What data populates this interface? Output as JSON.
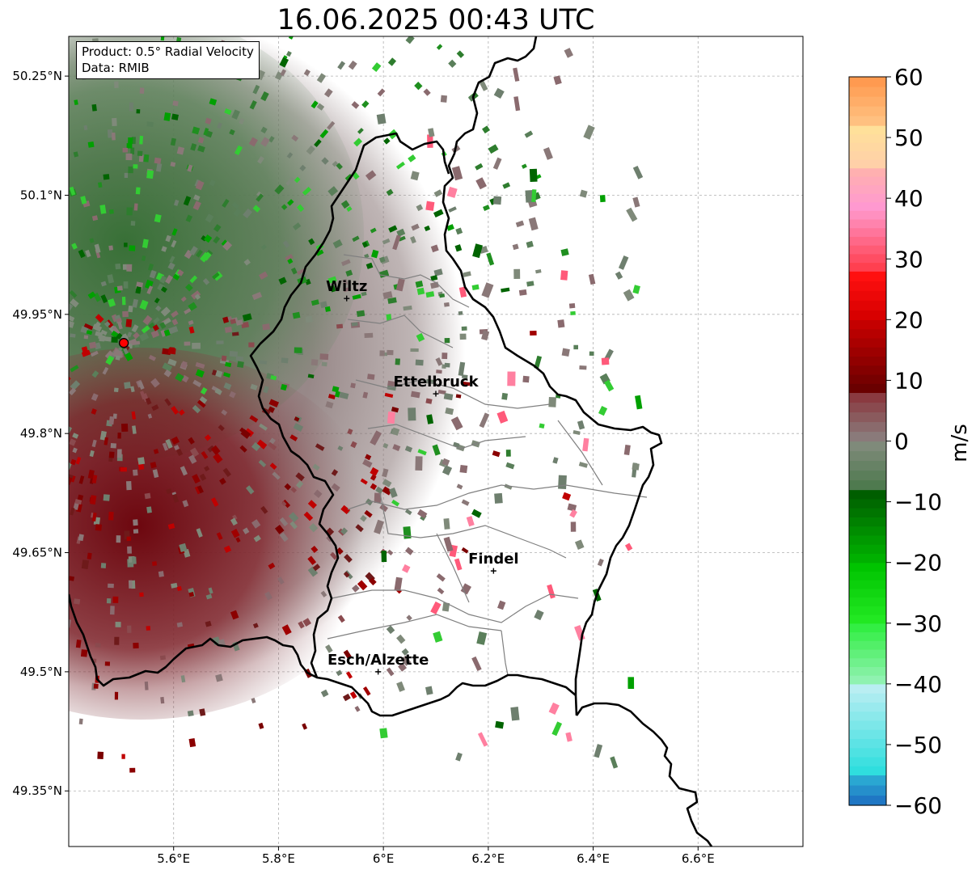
{
  "title": "16.06.2025 00:43 UTC",
  "info_box": {
    "product": "Product: 0.5° Radial Velocity",
    "data": "Data: RMIB"
  },
  "map": {
    "lon_range": [
      5.4,
      6.8
    ],
    "lat_range": [
      49.28,
      50.3
    ],
    "x_ticks": [
      {
        "value": 5.6,
        "label": "5.6°E"
      },
      {
        "value": 5.8,
        "label": "5.8°E"
      },
      {
        "value": 6.0,
        "label": "6°E"
      },
      {
        "value": 6.2,
        "label": "6.2°E"
      },
      {
        "value": 6.4,
        "label": "6.4°E"
      },
      {
        "value": 6.6,
        "label": "6.6°E"
      }
    ],
    "y_ticks": [
      {
        "value": 50.25,
        "label": "50.25°N"
      },
      {
        "value": 50.1,
        "label": "50.1°N"
      },
      {
        "value": 49.95,
        "label": "49.95°N"
      },
      {
        "value": 49.8,
        "label": "49.8°N"
      },
      {
        "value": 49.65,
        "label": "49.65°N"
      },
      {
        "value": 49.5,
        "label": "49.5°N"
      },
      {
        "value": 49.35,
        "label": "49.35°N"
      }
    ],
    "grid": true,
    "radar_site": {
      "lon": 5.505,
      "lat": 49.914
    },
    "cities": [
      {
        "name": "Wiltz",
        "lon": 5.93,
        "lat": 49.97
      },
      {
        "name": "Ettelbruck",
        "lon": 6.1,
        "lat": 49.85
      },
      {
        "name": "Findel",
        "lon": 6.21,
        "lat": 49.627
      },
      {
        "name": "Esch/Alzette",
        "lon": 5.99,
        "lat": 49.5
      }
    ]
  },
  "colorbar": {
    "unit": "m/s",
    "min": -60,
    "max": 60,
    "ticks": [
      {
        "value": 60,
        "label": "60"
      },
      {
        "value": 50,
        "label": "50"
      },
      {
        "value": 40,
        "label": "40"
      },
      {
        "value": 30,
        "label": "30"
      },
      {
        "value": 20,
        "label": "20"
      },
      {
        "value": 10,
        "label": "10"
      },
      {
        "value": 0,
        "label": "0"
      },
      {
        "value": -10,
        "label": "−10"
      },
      {
        "value": -20,
        "label": "−20"
      },
      {
        "value": -30,
        "label": "−30"
      },
      {
        "value": -40,
        "label": "−40"
      },
      {
        "value": -50,
        "label": "−50"
      },
      {
        "value": -60,
        "label": "−60"
      }
    ],
    "color_stops": [
      {
        "from": -60,
        "to": -55,
        "colors": [
          "#1f77c4",
          "#2aa7d2"
        ]
      },
      {
        "from": -55,
        "to": -40,
        "colors": [
          "#2fdede",
          "#b9eef2"
        ]
      },
      {
        "from": -40,
        "to": -30,
        "colors": [
          "#8ff2b0",
          "#33ee44"
        ]
      },
      {
        "from": -30,
        "to": -20,
        "colors": [
          "#22e822",
          "#00c400"
        ]
      },
      {
        "from": -20,
        "to": -8,
        "colors": [
          "#00b000",
          "#005e00"
        ]
      },
      {
        "from": -8,
        "to": 0,
        "colors": [
          "#4f7a4f",
          "#7f8a7a"
        ]
      },
      {
        "from": 0,
        "to": 8,
        "colors": [
          "#8a7a7a",
          "#8a3a40"
        ]
      },
      {
        "from": 8,
        "to": 20,
        "colors": [
          "#6a0000",
          "#c40000"
        ]
      },
      {
        "from": 20,
        "to": 28,
        "colors": [
          "#d80000",
          "#ff1010"
        ]
      },
      {
        "from": 28,
        "to": 38,
        "colors": [
          "#ff4050",
          "#ff90c0"
        ]
      },
      {
        "from": 38,
        "to": 45,
        "colors": [
          "#ff99d0",
          "#ffb0b0"
        ]
      },
      {
        "from": 45,
        "to": 52,
        "colors": [
          "#ffd0a8",
          "#ffe09a"
        ]
      },
      {
        "from": 52,
        "to": 60,
        "colors": [
          "#ffc080",
          "#ff9a50"
        ]
      }
    ]
  }
}
